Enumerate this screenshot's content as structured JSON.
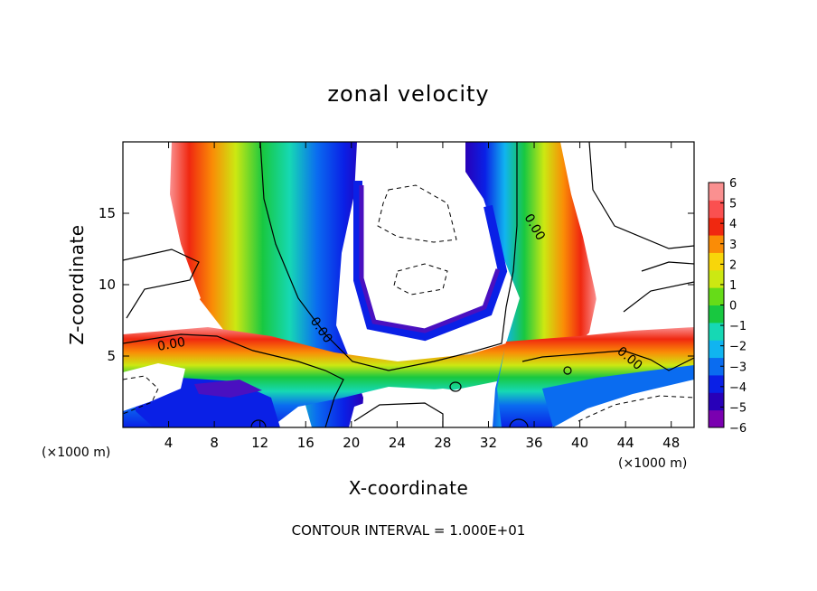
{
  "chart_data": {
    "type": "heatmap",
    "title": "zonal velocity",
    "xlabel": "X-coordinate",
    "ylabel": "Z-coordinate",
    "x_unit": "(×1000 m)",
    "y_unit": "(×1000 m)",
    "xlim": [
      0,
      50
    ],
    "ylim": [
      0,
      20
    ],
    "x_ticks": [
      4,
      8,
      12,
      16,
      20,
      24,
      28,
      32,
      36,
      40,
      44,
      48
    ],
    "y_ticks": [
      5,
      10,
      15
    ],
    "colorbar": {
      "ticks": [
        6,
        5,
        4,
        3,
        2,
        1,
        0,
        -1,
        -2,
        -3,
        -4,
        -5,
        -6
      ],
      "range": [
        -6,
        6
      ],
      "colors": [
        "#7a00b0",
        "#2800b8",
        "#0a20e6",
        "#0a6cf0",
        "#10b4f0",
        "#16d8b4",
        "#18c840",
        "#66dc18",
        "#cce812",
        "#f8d60a",
        "#fa8c06",
        "#f02810",
        "#fa5050",
        "#fa9090"
      ]
    },
    "contour_labels": [
      "0.00",
      "0.00",
      "0.00",
      "0.00"
    ],
    "contour_interval": "CONTOUR INTERVAL = 1.000E+01",
    "grid": false,
    "legend": "right"
  }
}
